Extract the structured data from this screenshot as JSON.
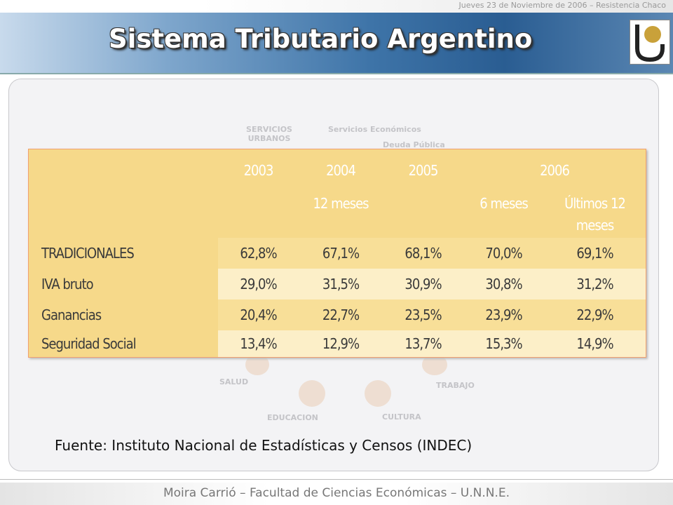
{
  "header": {
    "date": "Jueves 23 de Noviembre de 2006 – Resistencia Chaco",
    "title": "Sistema Tributario Argentino"
  },
  "background_labels": [
    "SERVICIOS URBANOS",
    "Servicios Económicos",
    "Deuda Pública",
    "SALUD",
    "TRABAJO",
    "EDUCACION",
    "CULTURA"
  ],
  "table": {
    "years": [
      "2003",
      "2004",
      "2005",
      "2006"
    ],
    "periods": [
      null,
      "12 meses",
      null,
      "6 meses",
      "Últimos 12 meses"
    ],
    "rows": [
      [
        "TRADICIONALES",
        "62,8%",
        "67,1%",
        "68,1%",
        "70,0%",
        "69,1%"
      ],
      [
        "IVA bruto",
        "29,0%",
        "31,5%",
        "30,9%",
        "30,8%",
        "31,2%"
      ],
      [
        "Ganancias",
        "20,4%",
        "22,7%",
        "23,5%",
        "23,9%",
        "22,9%"
      ],
      [
        "Seguridad Social",
        "13,4%",
        "12,9%",
        "13,7%",
        "15,3%",
        "14,9%"
      ]
    ]
  },
  "source": "Fuente: Instituto Nacional de Estadísticas y Censos (INDEC)",
  "footer": "Moira Carrió – Facultad de Ciencias Económicas – U.N.N.E."
}
